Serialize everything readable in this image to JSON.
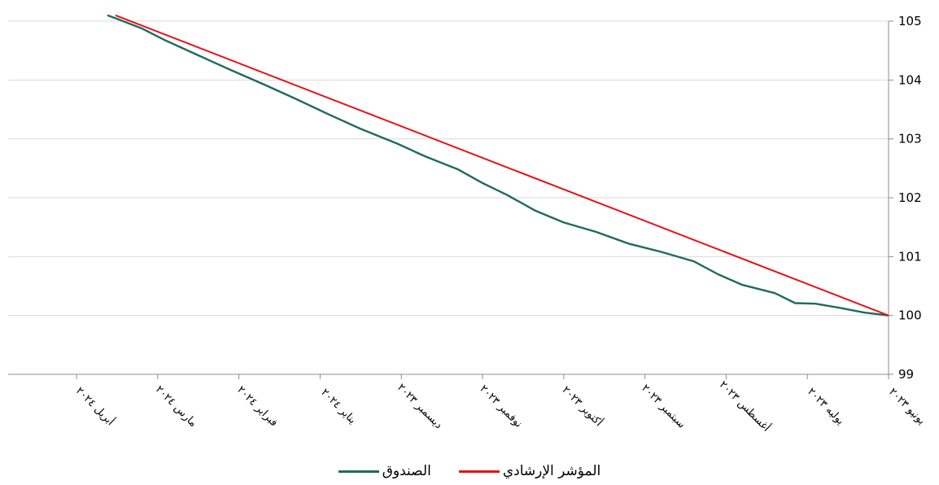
{
  "chart_data": {
    "type": "line",
    "ylim": [
      99,
      105
    ],
    "yticks": [
      "99",
      "100",
      "101",
      "102",
      "103",
      "104",
      "105"
    ],
    "x_axis_reversed": true,
    "month_labels": [
      {
        "month": "يونيو",
        "year": "٢٠٢٣"
      },
      {
        "month": "يوليه",
        "year": "٢٠٢٣"
      },
      {
        "month": "أغسطس",
        "year": "٢٠٢٣"
      },
      {
        "month": "سبتمبر",
        "year": "٢٠٢٣"
      },
      {
        "month": "أكتوبر",
        "year": "٢٠٢٣"
      },
      {
        "month": "نوفمبر",
        "year": "٢٠٢٣"
      },
      {
        "month": "ديسمبر",
        "year": "٢٠٢٣"
      },
      {
        "month": "يناير",
        "year": "٢٠٢٤"
      },
      {
        "month": "فبراير",
        "year": "٢٠٢٤"
      },
      {
        "month": "مارس",
        "year": "٢٠٢٤"
      },
      {
        "month": "أبريل",
        "year": "٢٠٢٤"
      }
    ],
    "grid": true,
    "legend_position": "bottom",
    "series": [
      {
        "name": "الصندوق",
        "color": "#1f6b5e",
        "points": [
          [
            0,
            100.0
          ],
          [
            0.3,
            100.05
          ],
          [
            0.6,
            100.13
          ],
          [
            0.9,
            100.2
          ],
          [
            1.15,
            100.21
          ],
          [
            1.4,
            100.38
          ],
          [
            1.8,
            100.52
          ],
          [
            2.1,
            100.7
          ],
          [
            2.4,
            100.92
          ],
          [
            2.8,
            101.08
          ],
          [
            3.2,
            101.22
          ],
          [
            3.6,
            101.42
          ],
          [
            4.0,
            101.58
          ],
          [
            4.35,
            101.78
          ],
          [
            4.7,
            102.05
          ],
          [
            5.0,
            102.25
          ],
          [
            5.3,
            102.48
          ],
          [
            5.7,
            102.7
          ],
          [
            6.05,
            102.92
          ],
          [
            6.5,
            103.17
          ],
          [
            6.9,
            103.42
          ],
          [
            7.3,
            103.68
          ],
          [
            7.7,
            103.93
          ],
          [
            8.1,
            104.17
          ],
          [
            8.5,
            104.42
          ],
          [
            8.9,
            104.67
          ],
          [
            9.2,
            104.88
          ],
          [
            9.5,
            105.04
          ],
          [
            9.62,
            105.1
          ]
        ]
      },
      {
        "name": "المؤشر الإرشادي",
        "color": "#e8111a",
        "points": [
          [
            0,
            100.0
          ],
          [
            9.52,
            105.1
          ]
        ]
      }
    ]
  }
}
